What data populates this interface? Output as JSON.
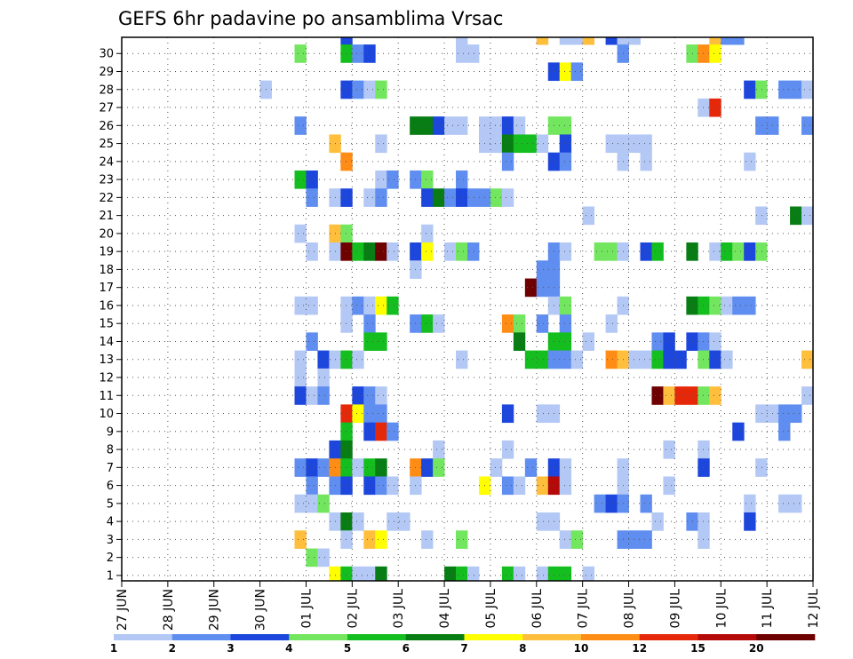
{
  "chart_data": {
    "type": "heatmap",
    "title": "GEFS 6hr padavine po ansamblima Vrsac",
    "x_tick_labels": [
      "27 JUN",
      "28 JUN",
      "29 JUN",
      "30 JUN",
      "01 JUL",
      "02 JUL",
      "03 JUL",
      "04 JUL",
      "05 JUL",
      "06 JUL",
      "07 JUL",
      "08 JUL",
      "09 JUL",
      "10 JUL",
      "11 JUL",
      "12 JUL"
    ],
    "y_tick_labels": [
      "1",
      "2",
      "3",
      "4",
      "5",
      "6",
      "7",
      "8",
      "9",
      "10",
      "11",
      "12",
      "13",
      "14",
      "15",
      "16",
      "17",
      "18",
      "19",
      "20",
      "21",
      "22",
      "23",
      "24",
      "25",
      "26",
      "27",
      "28",
      "29",
      "30"
    ],
    "xlim": [
      0,
      60
    ],
    "ylim": [
      0,
      30
    ],
    "grid": true,
    "color_levels": [
      1,
      2,
      3,
      4,
      5,
      6,
      7,
      8,
      10,
      12,
      15,
      20
    ],
    "colorbar_labels": [
      "1",
      "2",
      "3",
      "4",
      "5",
      "6",
      "7",
      "8",
      "10",
      "12",
      "15",
      "20"
    ],
    "colors": [
      "#b4c8f5",
      "#5f8ef0",
      "#1c46dc",
      "#73e65f",
      "#14be1e",
      "#087d14",
      "#ffff00",
      "#ffbe3c",
      "#ff8c14",
      "#e6280a",
      "#b40a0a",
      "#6e0000"
    ],
    "cells": [
      [
        19,
        30,
        3
      ],
      [
        29,
        30,
        1
      ],
      [
        36,
        30,
        8
      ],
      [
        38,
        30,
        1
      ],
      [
        39,
        30,
        1
      ],
      [
        40,
        30,
        8
      ],
      [
        42,
        30,
        3
      ],
      [
        43,
        30,
        1
      ],
      [
        44,
        30,
        1
      ],
      [
        51,
        30,
        8
      ],
      [
        52,
        30,
        2
      ],
      [
        53,
        30,
        2
      ],
      [
        15,
        29,
        4
      ],
      [
        19,
        29,
        5
      ],
      [
        20,
        29,
        2
      ],
      [
        21,
        29,
        3
      ],
      [
        29,
        29,
        1
      ],
      [
        30,
        29,
        1
      ],
      [
        43,
        29,
        2
      ],
      [
        49,
        29,
        4
      ],
      [
        50,
        29,
        9
      ],
      [
        51,
        29,
        7
      ],
      [
        37,
        28,
        3
      ],
      [
        38,
        28,
        7
      ],
      [
        39,
        28,
        2
      ],
      [
        12,
        27,
        1
      ],
      [
        19,
        27,
        3
      ],
      [
        20,
        27,
        2
      ],
      [
        21,
        27,
        1
      ],
      [
        22,
        27,
        4
      ],
      [
        54,
        27,
        3
      ],
      [
        55,
        27,
        4
      ],
      [
        57,
        27,
        2
      ],
      [
        58,
        27,
        2
      ],
      [
        59,
        27,
        1
      ],
      [
        50,
        26,
        1
      ],
      [
        51,
        26,
        10
      ],
      [
        15,
        25,
        2
      ],
      [
        25,
        25,
        6
      ],
      [
        26,
        25,
        6
      ],
      [
        27,
        25,
        3
      ],
      [
        28,
        25,
        1
      ],
      [
        29,
        25,
        1
      ],
      [
        31,
        25,
        1
      ],
      [
        32,
        25,
        1
      ],
      [
        33,
        25,
        3
      ],
      [
        34,
        25,
        1
      ],
      [
        37,
        25,
        4
      ],
      [
        38,
        25,
        4
      ],
      [
        55,
        25,
        2
      ],
      [
        56,
        25,
        2
      ],
      [
        59,
        25,
        2
      ],
      [
        18,
        24,
        8
      ],
      [
        22,
        24,
        1
      ],
      [
        31,
        24,
        1
      ],
      [
        32,
        24,
        1
      ],
      [
        33,
        24,
        6
      ],
      [
        34,
        24,
        5
      ],
      [
        35,
        24,
        5
      ],
      [
        36,
        24,
        1
      ],
      [
        38,
        24,
        3
      ],
      [
        42,
        24,
        1
      ],
      [
        43,
        24,
        1
      ],
      [
        44,
        24,
        1
      ],
      [
        45,
        24,
        1
      ],
      [
        19,
        23,
        9
      ],
      [
        33,
        23,
        2
      ],
      [
        37,
        23,
        3
      ],
      [
        38,
        23,
        2
      ],
      [
        43,
        23,
        1
      ],
      [
        45,
        23,
        1
      ],
      [
        54,
        23,
        1
      ],
      [
        15,
        22,
        5
      ],
      [
        16,
        22,
        3
      ],
      [
        22,
        22,
        1
      ],
      [
        23,
        22,
        2
      ],
      [
        25,
        22,
        2
      ],
      [
        26,
        22,
        4
      ],
      [
        29,
        22,
        2
      ],
      [
        16,
        21,
        2
      ],
      [
        18,
        21,
        1
      ],
      [
        19,
        21,
        3
      ],
      [
        21,
        21,
        1
      ],
      [
        22,
        21,
        2
      ],
      [
        26,
        21,
        3
      ],
      [
        27,
        21,
        6
      ],
      [
        28,
        21,
        2
      ],
      [
        29,
        21,
        3
      ],
      [
        30,
        21,
        2
      ],
      [
        31,
        21,
        2
      ],
      [
        32,
        21,
        4
      ],
      [
        33,
        21,
        1
      ],
      [
        40,
        20,
        1
      ],
      [
        55,
        20,
        1
      ],
      [
        58,
        20,
        6
      ],
      [
        59,
        20,
        1
      ],
      [
        15,
        19,
        1
      ],
      [
        18,
        19,
        8
      ],
      [
        19,
        19,
        4
      ],
      [
        26,
        19,
        1
      ],
      [
        16,
        18,
        1
      ],
      [
        18,
        18,
        1
      ],
      [
        19,
        18,
        12
      ],
      [
        20,
        18,
        5
      ],
      [
        21,
        18,
        6
      ],
      [
        22,
        18,
        12
      ],
      [
        23,
        18,
        1
      ],
      [
        25,
        18,
        3
      ],
      [
        26,
        18,
        7
      ],
      [
        28,
        18,
        1
      ],
      [
        29,
        18,
        4
      ],
      [
        30,
        18,
        2
      ],
      [
        37,
        18,
        2
      ],
      [
        38,
        18,
        1
      ],
      [
        41,
        18,
        4
      ],
      [
        42,
        18,
        4
      ],
      [
        43,
        18,
        1
      ],
      [
        45,
        18,
        3
      ],
      [
        46,
        18,
        5
      ],
      [
        49,
        18,
        6
      ],
      [
        51,
        18,
        1
      ],
      [
        52,
        18,
        5
      ],
      [
        53,
        18,
        4
      ],
      [
        54,
        18,
        3
      ],
      [
        55,
        18,
        4
      ],
      [
        25,
        17,
        1
      ],
      [
        36,
        17,
        2
      ],
      [
        37,
        17,
        2
      ],
      [
        35,
        16,
        12
      ],
      [
        36,
        16,
        2
      ],
      [
        37,
        16,
        2
      ],
      [
        15,
        15,
        1
      ],
      [
        16,
        15,
        1
      ],
      [
        19,
        15,
        1
      ],
      [
        20,
        15,
        2
      ],
      [
        21,
        15,
        1
      ],
      [
        22,
        15,
        7
      ],
      [
        23,
        15,
        5
      ],
      [
        37,
        15,
        1
      ],
      [
        38,
        15,
        4
      ],
      [
        43,
        15,
        1
      ],
      [
        49,
        15,
        6
      ],
      [
        50,
        15,
        5
      ],
      [
        51,
        15,
        4
      ],
      [
        52,
        15,
        1
      ],
      [
        53,
        15,
        2
      ],
      [
        54,
        15,
        2
      ],
      [
        19,
        14,
        1
      ],
      [
        21,
        14,
        2
      ],
      [
        25,
        14,
        2
      ],
      [
        26,
        14,
        5
      ],
      [
        27,
        14,
        1
      ],
      [
        33,
        14,
        9
      ],
      [
        34,
        14,
        4
      ],
      [
        36,
        14,
        2
      ],
      [
        38,
        14,
        2
      ],
      [
        42,
        14,
        1
      ],
      [
        16,
        13,
        2
      ],
      [
        21,
        13,
        5
      ],
      [
        22,
        13,
        5
      ],
      [
        34,
        13,
        6
      ],
      [
        37,
        13,
        5
      ],
      [
        38,
        13,
        5
      ],
      [
        40,
        13,
        1
      ],
      [
        46,
        13,
        2
      ],
      [
        47,
        13,
        3
      ],
      [
        49,
        13,
        3
      ],
      [
        50,
        13,
        2
      ],
      [
        51,
        13,
        1
      ],
      [
        15,
        12,
        1
      ],
      [
        17,
        12,
        3
      ],
      [
        18,
        12,
        1
      ],
      [
        19,
        12,
        5
      ],
      [
        20,
        12,
        1
      ],
      [
        29,
        12,
        1
      ],
      [
        35,
        12,
        5
      ],
      [
        36,
        12,
        5
      ],
      [
        37,
        12,
        2
      ],
      [
        38,
        12,
        2
      ],
      [
        39,
        12,
        1
      ],
      [
        42,
        12,
        9
      ],
      [
        43,
        12,
        8
      ],
      [
        44,
        12,
        1
      ],
      [
        45,
        12,
        1
      ],
      [
        46,
        12,
        5
      ],
      [
        47,
        12,
        3
      ],
      [
        48,
        12,
        3
      ],
      [
        50,
        12,
        4
      ],
      [
        51,
        12,
        3
      ],
      [
        52,
        12,
        1
      ],
      [
        59,
        12,
        8
      ],
      [
        15,
        11,
        1
      ],
      [
        17,
        11,
        1
      ],
      [
        15,
        10,
        3
      ],
      [
        16,
        10,
        1
      ],
      [
        17,
        10,
        2
      ],
      [
        20,
        10,
        3
      ],
      [
        21,
        10,
        2
      ],
      [
        22,
        10,
        1
      ],
      [
        46,
        10,
        12
      ],
      [
        47,
        10,
        8
      ],
      [
        48,
        10,
        10
      ],
      [
        49,
        10,
        10
      ],
      [
        50,
        10,
        4
      ],
      [
        51,
        10,
        8
      ],
      [
        59,
        10,
        1
      ],
      [
        19,
        9,
        10
      ],
      [
        20,
        9,
        7
      ],
      [
        21,
        9,
        2
      ],
      [
        22,
        9,
        2
      ],
      [
        33,
        9,
        3
      ],
      [
        36,
        9,
        1
      ],
      [
        37,
        9,
        1
      ],
      [
        55,
        9,
        1
      ],
      [
        56,
        9,
        1
      ],
      [
        57,
        9,
        2
      ],
      [
        58,
        9,
        2
      ],
      [
        19,
        8,
        5
      ],
      [
        21,
        8,
        3
      ],
      [
        22,
        8,
        10
      ],
      [
        23,
        8,
        2
      ],
      [
        53,
        8,
        3
      ],
      [
        57,
        8,
        2
      ],
      [
        18,
        7,
        3
      ],
      [
        19,
        7,
        6
      ],
      [
        27,
        7,
        1
      ],
      [
        33,
        7,
        1
      ],
      [
        47,
        7,
        1
      ],
      [
        50,
        7,
        1
      ],
      [
        15,
        6,
        2
      ],
      [
        16,
        6,
        3
      ],
      [
        17,
        6,
        2
      ],
      [
        18,
        6,
        9
      ],
      [
        19,
        6,
        5
      ],
      [
        20,
        6,
        1
      ],
      [
        21,
        6,
        5
      ],
      [
        22,
        6,
        6
      ],
      [
        25,
        6,
        9
      ],
      [
        26,
        6,
        3
      ],
      [
        27,
        6,
        4
      ],
      [
        32,
        6,
        1
      ],
      [
        35,
        6,
        2
      ],
      [
        37,
        6,
        3
      ],
      [
        38,
        6,
        1
      ],
      [
        43,
        6,
        1
      ],
      [
        50,
        6,
        3
      ],
      [
        55,
        6,
        1
      ],
      [
        16,
        5,
        2
      ],
      [
        18,
        5,
        2
      ],
      [
        19,
        5,
        3
      ],
      [
        21,
        5,
        3
      ],
      [
        22,
        5,
        2
      ],
      [
        23,
        5,
        1
      ],
      [
        25,
        5,
        1
      ],
      [
        31,
        5,
        7
      ],
      [
        33,
        5,
        2
      ],
      [
        34,
        5,
        1
      ],
      [
        36,
        5,
        8
      ],
      [
        37,
        5,
        11
      ],
      [
        38,
        5,
        1
      ],
      [
        43,
        5,
        1
      ],
      [
        47,
        5,
        1
      ],
      [
        15,
        4,
        1
      ],
      [
        16,
        4,
        1
      ],
      [
        17,
        4,
        4
      ],
      [
        41,
        4,
        2
      ],
      [
        42,
        4,
        3
      ],
      [
        43,
        4,
        2
      ],
      [
        45,
        4,
        2
      ],
      [
        54,
        4,
        1
      ],
      [
        57,
        4,
        1
      ],
      [
        58,
        4,
        1
      ],
      [
        18,
        3,
        1
      ],
      [
        19,
        3,
        6
      ],
      [
        20,
        3,
        1
      ],
      [
        23,
        3,
        1
      ],
      [
        24,
        3,
        1
      ],
      [
        36,
        3,
        1
      ],
      [
        37,
        3,
        1
      ],
      [
        46,
        3,
        1
      ],
      [
        49,
        3,
        2
      ],
      [
        50,
        3,
        1
      ],
      [
        54,
        3,
        3
      ],
      [
        15,
        2,
        8
      ],
      [
        19,
        2,
        1
      ],
      [
        21,
        2,
        8
      ],
      [
        22,
        2,
        7
      ],
      [
        26,
        2,
        1
      ],
      [
        29,
        2,
        4
      ],
      [
        38,
        2,
        1
      ],
      [
        39,
        2,
        4
      ],
      [
        43,
        2,
        2
      ],
      [
        44,
        2,
        2
      ],
      [
        45,
        2,
        2
      ],
      [
        50,
        2,
        1
      ],
      [
        16,
        1,
        4
      ],
      [
        17,
        1,
        1
      ],
      [
        18,
        0,
        7
      ],
      [
        19,
        0,
        5
      ],
      [
        20,
        0,
        1
      ],
      [
        21,
        0,
        1
      ],
      [
        22,
        0,
        6
      ],
      [
        28,
        0,
        6
      ],
      [
        29,
        0,
        5
      ],
      [
        30,
        0,
        1
      ],
      [
        33,
        0,
        5
      ],
      [
        34,
        0,
        1
      ],
      [
        36,
        0,
        1
      ],
      [
        37,
        0,
        5
      ],
      [
        38,
        0,
        5
      ],
      [
        40,
        0,
        1
      ]
    ]
  }
}
